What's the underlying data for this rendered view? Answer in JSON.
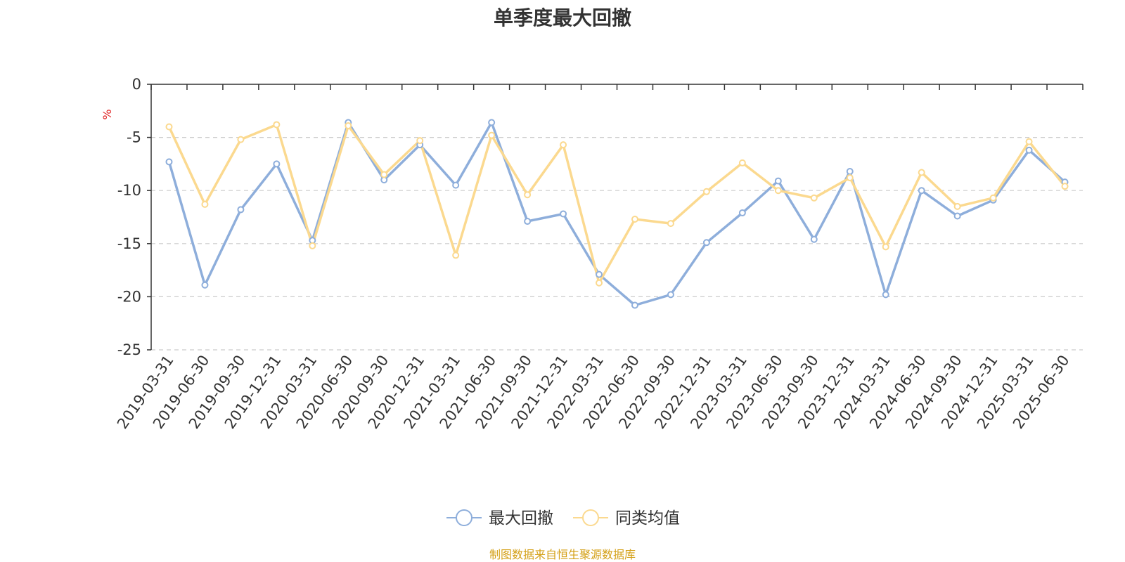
{
  "chart_data": {
    "type": "line",
    "title": "单季度最大回撤",
    "ylabel": "%",
    "ylim": [
      -25,
      0
    ],
    "yticks": [
      0,
      -5,
      -10,
      -15,
      -20,
      -25
    ],
    "grid": true,
    "legend_position": "bottom-center",
    "categories": [
      "2019-03-31",
      "2019-06-30",
      "2019-09-30",
      "2019-12-31",
      "2020-03-31",
      "2020-06-30",
      "2020-09-30",
      "2020-12-31",
      "2021-03-31",
      "2021-06-30",
      "2021-09-30",
      "2021-12-31",
      "2022-03-31",
      "2022-06-30",
      "2022-09-30",
      "2022-12-31",
      "2023-03-31",
      "2023-06-30",
      "2023-09-30",
      "2023-12-31",
      "2024-03-31",
      "2024-06-30",
      "2024-09-30",
      "2024-12-31",
      "2025-03-31",
      "2025-06-30"
    ],
    "series": [
      {
        "name": "最大回撤",
        "color": "#8eaedb",
        "values": [
          -7.3,
          -18.9,
          -11.8,
          -7.5,
          -14.7,
          -3.6,
          -9.0,
          -5.7,
          -9.5,
          -3.6,
          -12.9,
          -12.2,
          -17.9,
          -20.8,
          -19.8,
          -14.9,
          -12.1,
          -9.1,
          -14.6,
          -8.2,
          -19.8,
          -10.0,
          -12.4,
          -10.9,
          -6.2,
          -9.2
        ]
      },
      {
        "name": "同类均值",
        "color": "#fbd98f",
        "values": [
          -4.0,
          -11.3,
          -5.2,
          -3.8,
          -15.2,
          -3.9,
          -8.5,
          -5.3,
          -16.1,
          -4.8,
          -10.4,
          -5.7,
          -18.7,
          -12.7,
          -13.1,
          -10.1,
          -7.4,
          -10.0,
          -10.7,
          -8.8,
          -15.3,
          -8.3,
          -11.5,
          -10.7,
          -5.4,
          -9.6
        ]
      }
    ],
    "source": "制图数据来自恒生聚源数据库"
  }
}
